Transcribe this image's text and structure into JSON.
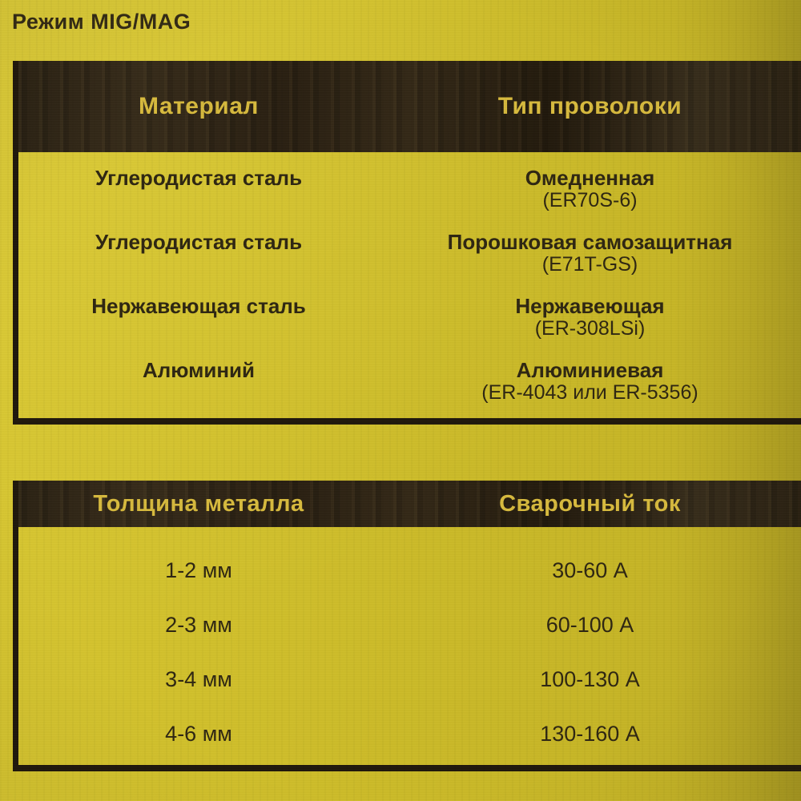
{
  "page_title": "Режим MIG/MAG",
  "colors": {
    "background_yellow": "#cfbe2b",
    "table_border_dark": "#20180c",
    "header_band_dark": "#2e2415",
    "header_text_yellow": "#d8bb3e",
    "body_text_dark": "#2f2712"
  },
  "materials_table": {
    "headers": {
      "col1": "Материал",
      "col2": "Тип проволоки"
    },
    "rows": [
      {
        "material": "Углеродистая сталь",
        "wire_type": "Омедненная",
        "wire_spec": "(ER70S-6)"
      },
      {
        "material": "Углеродистая сталь",
        "wire_type": "Порошковая самозащитная",
        "wire_spec": "(E71T-GS)"
      },
      {
        "material": "Нержавеющая сталь",
        "wire_type": "Нержавеющая",
        "wire_spec": "(ER-308LSi)"
      },
      {
        "material": "Алюминий",
        "wire_type": "Алюминиевая",
        "wire_spec": "(ER-4043 или ER-5356)"
      }
    ]
  },
  "current_table": {
    "headers": {
      "col1": "Толщина металла",
      "col2": "Сварочный ток"
    },
    "rows": [
      {
        "thickness": "1-2 мм",
        "current": "30-60 А"
      },
      {
        "thickness": "2-3 мм",
        "current": "60-100 А"
      },
      {
        "thickness": "3-4 мм",
        "current": "100-130 А"
      },
      {
        "thickness": "4-6 мм",
        "current": "130-160 А"
      }
    ]
  }
}
